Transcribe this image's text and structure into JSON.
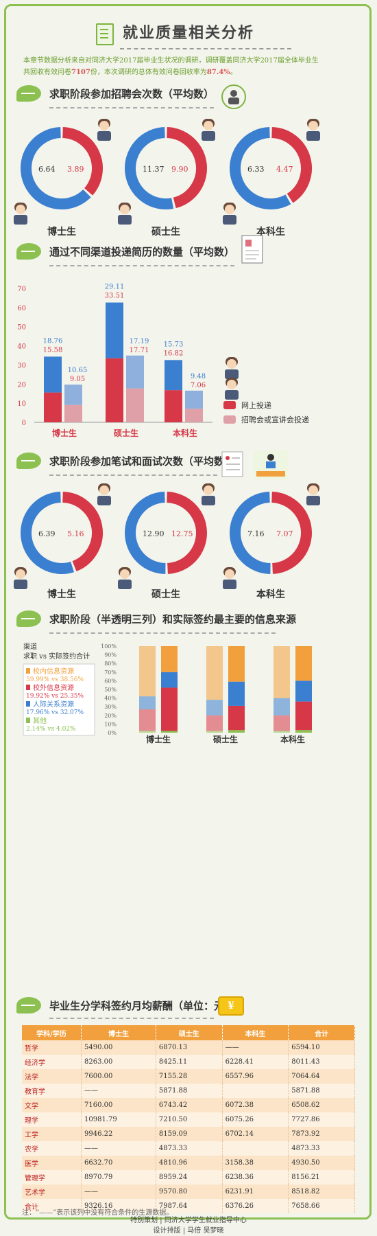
{
  "header": {
    "title": "就业质量相关分析",
    "intro_1": "本章节数据分析来自对同济大学2017届毕业生状况的调研，调研覆盖同济大学2017届全体毕业生",
    "intro_2a": "共回收有效问卷",
    "intro_n": "7107",
    "intro_2b": "份，本次调研的总体有效问卷回收率为",
    "intro_rate": "87.4%",
    "intro_2c": "。"
  },
  "sections": {
    "s1": "求职阶段参加招聘会次数（平均数）",
    "s2": "通过不同渠道投递简历的数量（平均数）",
    "s3": "求职阶段参加笔试和面试次数（平均数）",
    "s4": "求职阶段（半透明三列）和实际签约最主要的信息来源",
    "s5": "毕业生分学科签约月均薪酬（单位：元）"
  },
  "colors": {
    "blue": "#3b7fd0",
    "red": "#d63848",
    "orange": "#f2a03d",
    "green": "#8cc152",
    "salmon": "#e0707e"
  },
  "chart_data": [
    {
      "type": "pie",
      "title": "求职阶段参加招聘会次数（平均数）",
      "groups": [
        {
          "label": "博士生",
          "blue": 6.64,
          "red": 3.89,
          "blue_text": "6.64",
          "red_text": "3.89"
        },
        {
          "label": "硕士生",
          "blue": 11.37,
          "red": 9.9,
          "blue_text": "11.37",
          "red_text": "9.90"
        },
        {
          "label": "本科生",
          "blue": 6.33,
          "red": 4.47,
          "blue_text": "6.33",
          "red_text": "4.47"
        }
      ]
    },
    {
      "type": "bar",
      "title": "通过不同渠道投递简历的数量（平均数）",
      "categories": [
        "博士生",
        "硕士生",
        "本科生"
      ],
      "ylim": [
        0,
        70
      ],
      "yticks": [
        0,
        10,
        20,
        30,
        40,
        50,
        60,
        70
      ],
      "series": [
        {
          "name": "网上投递",
          "total": [
            34.34,
            62.62,
            32.55
          ],
          "male": [
            18.76,
            29.11,
            15.73
          ],
          "female": [
            15.58,
            33.51,
            16.82
          ],
          "labels_top": [
            "18.76",
            "29.11",
            "15.73"
          ],
          "labels_bottom": [
            "15.58",
            "33.51",
            "16.82"
          ]
        },
        {
          "name": "招聘会或宣讲会投递",
          "total": [
            19.7,
            34.9,
            16.54
          ],
          "male": [
            10.65,
            17.19,
            9.48
          ],
          "female": [
            9.05,
            17.71,
            7.06
          ],
          "labels_top": [
            "10.65",
            "17.19",
            "9.48"
          ],
          "labels_bottom": [
            "9.05",
            "17.71",
            "7.06"
          ]
        }
      ]
    },
    {
      "type": "pie",
      "title": "求职阶段参加笔试和面试次数（平均数）",
      "groups": [
        {
          "label": "博士生",
          "blue": 6.39,
          "red": 5.16,
          "blue_text": "6.39",
          "red_text": "5.16"
        },
        {
          "label": "硕士生",
          "blue": 12.9,
          "red": 12.75,
          "blue_text": "12.90",
          "red_text": "12.75"
        },
        {
          "label": "本科生",
          "blue": 7.16,
          "red": 7.07,
          "blue_text": "7.16",
          "red_text": "7.07"
        }
      ]
    },
    {
      "type": "bar",
      "title": "求职阶段（半透明三列）和实际签约最主要的信息来源",
      "ylabel_1": "渠道",
      "ylabel_2": "求职 vs 实际签约合计",
      "categories": [
        "博士生",
        "硕士生",
        "本科生"
      ],
      "yticks": [
        "0%",
        "10%",
        "20%",
        "30%",
        "40%",
        "50%",
        "60%",
        "70%",
        "80%",
        "90%",
        "100%"
      ],
      "legend": [
        {
          "name": "校内信息资源",
          "text": "59.99% vs 38.56%",
          "color": "#f2a03d"
        },
        {
          "name": "校外信息资源",
          "text": "19.92% vs 25.35%",
          "color": "#d63848"
        },
        {
          "name": "人际关系资源",
          "text": "17.96% vs 32.07%",
          "color": "#3b7fd0"
        },
        {
          "name": "其他",
          "text": "2.14% vs 4.02%",
          "color": "#8cc152"
        }
      ],
      "stacks": [
        {
          "job": [
            2,
            25,
            15,
            58
          ],
          "sign": [
            2,
            50,
            18,
            30
          ]
        },
        {
          "job": [
            2,
            18,
            18,
            62
          ],
          "sign": [
            3,
            28,
            28,
            41
          ]
        },
        {
          "job": [
            2,
            18,
            20,
            60
          ],
          "sign": [
            3,
            33,
            24,
            40
          ]
        }
      ]
    },
    {
      "type": "table",
      "title": "毕业生分学科签约月均薪酬（单位：元）",
      "headers": [
        "学科/学历",
        "博士生",
        "硕士生",
        "本科生",
        "合计"
      ],
      "rows": [
        [
          "哲学",
          "5490.00",
          "6870.13",
          "——",
          "6594.10"
        ],
        [
          "经济学",
          "8263.00",
          "8425.11",
          "6228.41",
          "8011.43"
        ],
        [
          "法学",
          "7600.00",
          "7155.28",
          "6557.96",
          "7064.64"
        ],
        [
          "教育学",
          "——",
          "5871.88",
          "",
          "5871.88"
        ],
        [
          "文学",
          "7160.00",
          "6743.42",
          "6072.38",
          "6508.62"
        ],
        [
          "理学",
          "10981.79",
          "7210.50",
          "6075.26",
          "7727.86"
        ],
        [
          "工学",
          "9946.22",
          "8159.09",
          "6702.14",
          "7873.92"
        ],
        [
          "农学",
          "——",
          "4873.33",
          "",
          "4873.33"
        ],
        [
          "医学",
          "6632.70",
          "4810.96",
          "3158.38",
          "4930.50"
        ],
        [
          "管理学",
          "8970.79",
          "8959.24",
          "6238.36",
          "8156.21"
        ],
        [
          "艺术学",
          "——",
          "9570.80",
          "6231.91",
          "8518.82"
        ],
        [
          "合计",
          "9326.16",
          "7987.64",
          "6376.26",
          "7658.66"
        ]
      ]
    }
  ],
  "note": "注：“——”表示该列中没有符合条件的生源数据。",
  "credits_1": "特别策划 | 同济大学学生就业指导中心",
  "credits_2": "设计排版 | 马倍 吴梦晓",
  "coin_symbol": "¥"
}
